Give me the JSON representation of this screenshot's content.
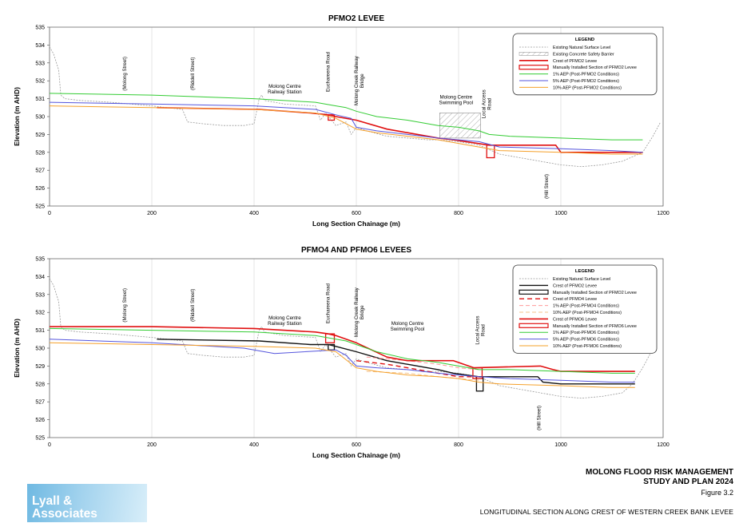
{
  "footer": {
    "title_line1": "MOLONG FLOOD RISK MANAGEMENT",
    "title_line2": "STUDY AND PLAN 2024",
    "figure": "Figure 3.2",
    "caption": "LONGITUDINAL SECTION ALONG CREST OF WESTERN CREEK BANK LEVEE",
    "logo_line1": "Lyall &",
    "logo_line2": "Associates"
  },
  "colors": {
    "ground": "#9a9a9a",
    "barrier": "#8a8a8a",
    "crest_red": "#e01010",
    "crest_black": "#111111",
    "aep1": "#33cc33",
    "aep5": "#5555dd",
    "aep10": "#f5a02a",
    "aep1_pfmo4": "#ff9a9a",
    "aep10_pfmo4": "#f5c38a"
  },
  "chart_data": [
    {
      "type": "line",
      "title": "PFMO2 LEVEE",
      "xlabel": "Long Section Chainage (m)",
      "ylabel": "Elevation (m AHD)",
      "xlim": [
        0,
        1200
      ],
      "ylim": [
        525,
        535
      ],
      "xticks": [
        0,
        200,
        400,
        600,
        800,
        1000,
        1200
      ],
      "yticks": [
        525,
        526,
        527,
        528,
        529,
        530,
        531,
        532,
        533,
        534,
        535
      ],
      "grid": "vertical",
      "legend_position": "top-right",
      "legend_title": "LEGEND",
      "annotations": [
        {
          "text": "(Molong Street)",
          "x": 150,
          "y": 532.4,
          "rotate": true
        },
        {
          "text": "(Riddell Street)",
          "x": 283,
          "y": 532.4,
          "rotate": true
        },
        {
          "text": "Molong Centre\nRailway Station",
          "x": 460,
          "y": 531.6,
          "rotate": false
        },
        {
          "text": "Euchareena Road",
          "x": 548,
          "y": 532.5,
          "rotate": true
        },
        {
          "text": "Molong Creek Railway\nBridge",
          "x": 603,
          "y": 532.0,
          "rotate": true
        },
        {
          "text": "Molong Centre\nSwimming Pool",
          "x": 795,
          "y": 531.0,
          "rotate": false
        },
        {
          "text": "Local Access\nRoad",
          "x": 852,
          "y": 530.7,
          "rotate": true
        },
        {
          "text": "(Hill Street)",
          "x": 975,
          "y": 526.1,
          "rotate": true
        }
      ],
      "series": [
        {
          "name": "Existing Natural Surface Level",
          "style": "ground",
          "x": [
            0,
            8,
            18,
            22,
            30,
            60,
            120,
            200,
            260,
            270,
            300,
            340,
            380,
            400,
            410,
            415,
            420,
            460,
            520,
            530,
            540,
            560,
            580,
            590,
            600,
            620,
            660,
            700,
            740,
            760,
            800,
            840,
            880,
            920,
            960,
            1000,
            1040,
            1080,
            1120,
            1160,
            1180,
            1195
          ],
          "y": [
            533.9,
            533.5,
            532.6,
            531.2,
            531.0,
            530.9,
            530.8,
            530.6,
            530.4,
            529.7,
            529.6,
            529.5,
            529.5,
            529.6,
            531.0,
            531.2,
            530.9,
            530.7,
            530.6,
            529.8,
            530.2,
            529.5,
            529.7,
            529.0,
            529.4,
            529.2,
            528.9,
            528.8,
            528.7,
            528.7,
            528.6,
            528.4,
            527.9,
            527.7,
            527.5,
            527.3,
            527.2,
            527.3,
            527.5,
            528.0,
            528.9,
            529.7
          ]
        },
        {
          "name": "Existing Concrete Safety Barrier",
          "style": "barrier",
          "x": [
            763,
            843
          ],
          "y": [
            528.8,
            530.2
          ]
        },
        {
          "name": "Crest of PFMO2 Levee",
          "style": "crest_red",
          "x": [
            210,
            410,
            410,
            510,
            545,
            560,
            600,
            660,
            700,
            760,
            790,
            860,
            960,
            990,
            1000,
            1160
          ],
          "y": [
            530.5,
            530.4,
            530.4,
            530.2,
            530.1,
            530.0,
            529.8,
            529.3,
            529.1,
            528.8,
            528.7,
            528.4,
            528.4,
            528.4,
            528.0,
            528.0
          ]
        },
        {
          "name": "Manually Installed Section of PFMO2 Levee",
          "style": "manual",
          "x": [
            [
              545,
              557
            ],
            [
              855,
              870
            ]
          ],
          "y": [
            [
              530.1,
              529.8
            ],
            [
              528.4,
              527.7
            ]
          ]
        },
        {
          "name": "1% AEP (Post-PFMO2 Conditions)",
          "style": "aep1",
          "x": [
            0,
            200,
            400,
            520,
            560,
            580,
            600,
            640,
            700,
            760,
            800,
            840,
            860,
            900,
            1000,
            1100,
            1160
          ],
          "y": [
            531.3,
            531.2,
            531.0,
            530.8,
            530.6,
            530.5,
            530.3,
            530.0,
            529.8,
            529.5,
            529.4,
            529.2,
            529.0,
            528.9,
            528.8,
            528.7,
            528.7
          ]
        },
        {
          "name": "5% AEP (Post-PFMO2 Conditions)",
          "style": "aep5",
          "x": [
            0,
            200,
            400,
            520,
            560,
            590,
            600,
            640,
            700,
            760,
            800,
            840,
            880,
            1000,
            1100,
            1160
          ],
          "y": [
            530.8,
            530.7,
            530.6,
            530.4,
            530.1,
            529.9,
            529.4,
            529.2,
            529.0,
            528.8,
            528.7,
            528.6,
            528.3,
            528.2,
            528.1,
            528.0
          ]
        },
        {
          "name": "10% AEP (Post-PFMO2 Conditions)",
          "style": "aep10",
          "x": [
            0,
            200,
            400,
            520,
            560,
            600,
            640,
            700,
            760,
            800,
            840,
            880,
            1000,
            1100,
            1160
          ],
          "y": [
            530.6,
            530.5,
            530.4,
            530.2,
            529.9,
            529.3,
            529.1,
            528.9,
            528.7,
            528.5,
            528.3,
            528.1,
            528.0,
            527.9,
            527.9
          ]
        }
      ]
    },
    {
      "type": "line",
      "title": "PFMO4 AND PFMO6 LEVEES",
      "xlabel": "Long Section Chainage (m)",
      "ylabel": "Elevation (m AHD)",
      "xlim": [
        0,
        1200
      ],
      "ylim": [
        525,
        535
      ],
      "xticks": [
        0,
        200,
        400,
        600,
        800,
        1000,
        1200
      ],
      "yticks": [
        525,
        526,
        527,
        528,
        529,
        530,
        531,
        532,
        533,
        534,
        535
      ],
      "grid": "vertical",
      "legend_position": "top-right",
      "legend_title": "LEGEND",
      "annotations": [
        {
          "text": "(Molong Street)",
          "x": 150,
          "y": 532.4,
          "rotate": true
        },
        {
          "text": "(Riddell Street)",
          "x": 283,
          "y": 532.4,
          "rotate": true
        },
        {
          "text": "Molong Centre\nRailway Station",
          "x": 460,
          "y": 531.6,
          "rotate": false
        },
        {
          "text": "Euchareena Road",
          "x": 548,
          "y": 532.5,
          "rotate": true
        },
        {
          "text": "Molong Creek Railway\nBridge",
          "x": 603,
          "y": 532.0,
          "rotate": true
        },
        {
          "text": "Molong Centre\nSwimming Pool",
          "x": 700,
          "y": 531.3,
          "rotate": false
        },
        {
          "text": "Local Access\nRoad",
          "x": 840,
          "y": 531.0,
          "rotate": true
        },
        {
          "text": "(Hill Street)",
          "x": 960,
          "y": 526.1,
          "rotate": true
        }
      ],
      "series": [
        {
          "name": "Existing Natural Surface Level",
          "style": "ground",
          "x": [
            0,
            8,
            18,
            22,
            30,
            60,
            120,
            200,
            260,
            270,
            300,
            340,
            380,
            400,
            410,
            415,
            420,
            460,
            520,
            530,
            540,
            560,
            580,
            590,
            600,
            620,
            660,
            700,
            740,
            760,
            800,
            840,
            880,
            920,
            960,
            1000,
            1040,
            1080,
            1120,
            1140,
            1160,
            1175
          ],
          "y": [
            533.9,
            533.5,
            532.6,
            531.2,
            531.0,
            530.9,
            530.8,
            530.6,
            530.4,
            529.7,
            529.6,
            529.5,
            529.5,
            529.6,
            531.0,
            531.2,
            530.9,
            530.7,
            530.6,
            529.8,
            530.2,
            529.5,
            529.7,
            529.0,
            529.4,
            529.2,
            528.9,
            528.8,
            528.7,
            528.7,
            528.6,
            528.4,
            527.9,
            527.7,
            527.5,
            527.3,
            527.2,
            527.3,
            527.5,
            528.0,
            528.9,
            529.7
          ]
        },
        {
          "name": "Crest of PFMO2 Levee",
          "style": "crest_black",
          "x": [
            210,
            410,
            410,
            510,
            545,
            560,
            600,
            660,
            700,
            760,
            790,
            840,
            955,
            965,
            1000,
            1145
          ],
          "y": [
            530.5,
            530.4,
            530.4,
            530.2,
            530.2,
            530.1,
            529.8,
            529.3,
            529.1,
            528.8,
            528.6,
            528.4,
            528.4,
            528.1,
            528.0,
            528.0
          ]
        },
        {
          "name": "Manually Installed Section of PFMO2 Levee",
          "style": "manual_black",
          "x": [
            [
              545,
              557
            ],
            [
              835,
              848
            ]
          ],
          "y": [
            [
              530.2,
              529.9
            ],
            [
              528.4,
              527.6
            ]
          ]
        },
        {
          "name": "Crest of PFMO4 Levee",
          "style": "crest4",
          "x": [
            600,
            660,
            700,
            760,
            800,
            840
          ],
          "y": [
            529.3,
            529.1,
            528.9,
            528.6,
            528.4,
            528.4
          ]
        },
        {
          "name": "1% AEP (Post-PFMO4 Conditions)",
          "style": "aep1_pfmo4",
          "x": [
            620,
            700,
            760,
            800,
            840
          ],
          "y": [
            529.5,
            529.3,
            529.1,
            528.9,
            528.8
          ]
        },
        {
          "name": "10% AEP (Post-PFMO4 Conditions)",
          "style": "aep10_pfmo4",
          "x": [
            620,
            700,
            760,
            800,
            840
          ],
          "y": [
            528.7,
            528.6,
            528.4,
            528.3,
            528.2
          ]
        },
        {
          "name": "Crest of PFMO6 Levee",
          "style": "crest_red",
          "x": [
            0,
            200,
            400,
            520,
            545,
            560,
            600,
            660,
            700,
            760,
            790,
            830,
            960,
            985,
            1000,
            1145
          ],
          "y": [
            531.2,
            531.2,
            531.1,
            530.9,
            530.8,
            530.7,
            530.3,
            529.5,
            529.3,
            529.3,
            529.3,
            528.9,
            529.0,
            528.8,
            528.7,
            528.7
          ]
        },
        {
          "name": "Manually Installed Section of PFMO6 Levee",
          "style": "manual",
          "x": [
            [
              540,
              557
            ],
            [
              828,
              846
            ]
          ],
          "y": [
            [
              530.8,
              530.3
            ],
            [
              528.9,
              528.3
            ]
          ]
        },
        {
          "name": "1% AEP (Post-PFMO6 Conditions)",
          "style": "aep1",
          "x": [
            0,
            200,
            400,
            520,
            560,
            580,
            600,
            640,
            700,
            760,
            800,
            840,
            900,
            1000,
            1100,
            1145
          ],
          "y": [
            531.1,
            531.0,
            530.9,
            530.7,
            530.5,
            530.4,
            530.2,
            529.8,
            529.4,
            529.2,
            529.0,
            528.8,
            528.8,
            528.7,
            528.6,
            528.6
          ]
        },
        {
          "name": "5% AEP (Post-PFMO6 Conditions)",
          "style": "aep5",
          "x": [
            0,
            200,
            380,
            440,
            560,
            580,
            600,
            640,
            700,
            760,
            800,
            840,
            900,
            1000,
            1100,
            1145
          ],
          "y": [
            530.5,
            530.3,
            530.0,
            529.7,
            529.9,
            529.6,
            529.0,
            528.9,
            528.8,
            528.6,
            528.5,
            528.4,
            528.3,
            528.2,
            528.1,
            528.1
          ]
        },
        {
          "name": "10% AEP (Post-PFMO6 Conditions)",
          "style": "aep10",
          "x": [
            0,
            200,
            400,
            520,
            560,
            600,
            640,
            700,
            760,
            800,
            840,
            880,
            1000,
            1100,
            1145
          ],
          "y": [
            530.3,
            530.2,
            530.1,
            530.0,
            529.8,
            528.9,
            528.7,
            528.5,
            528.4,
            528.3,
            528.1,
            528.0,
            527.9,
            527.8,
            527.8
          ]
        }
      ]
    }
  ]
}
